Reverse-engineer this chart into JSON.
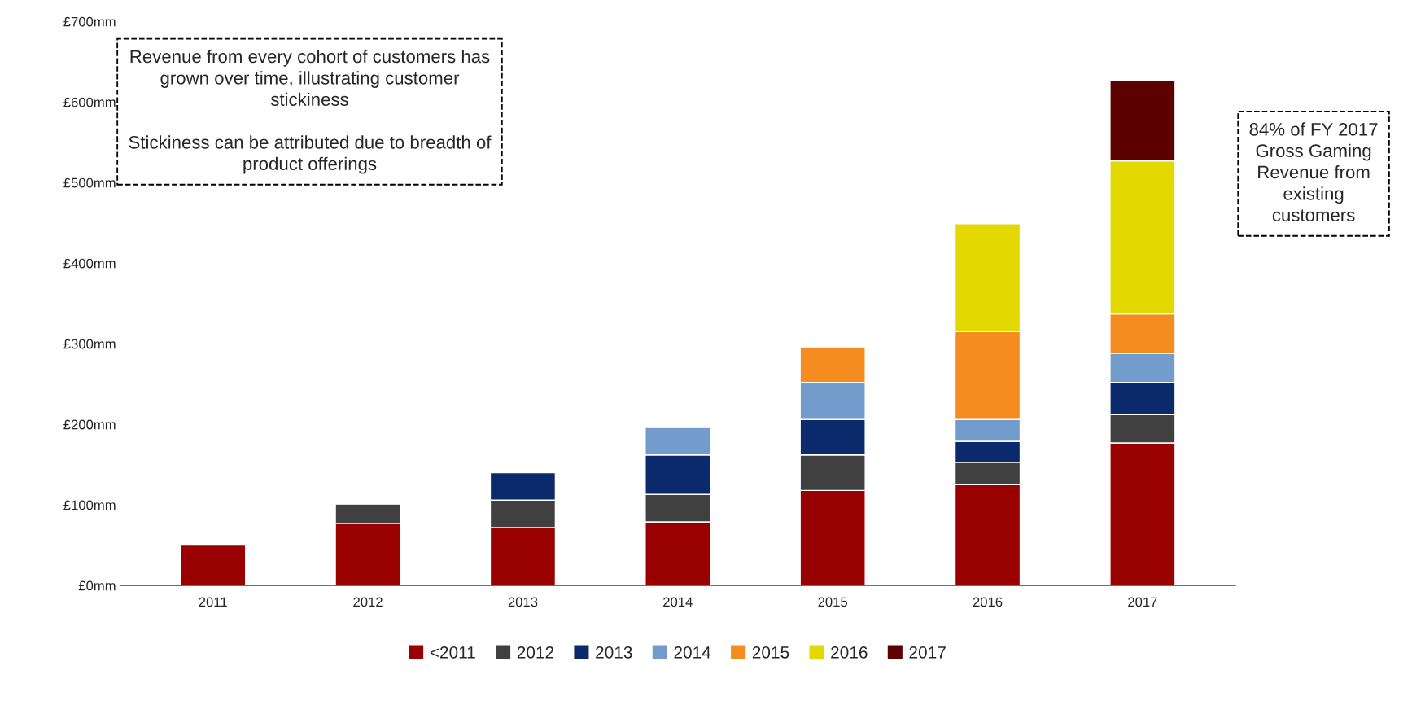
{
  "chart_data": {
    "type": "bar",
    "stacked": true,
    "categories": [
      "2011",
      "2012",
      "2013",
      "2014",
      "2015",
      "2016",
      "2017"
    ],
    "series": [
      {
        "name": "<2011",
        "color": "#990000",
        "values": [
          50,
          77,
          72,
          79,
          118,
          125,
          177
        ]
      },
      {
        "name": "2012",
        "color": "#404040",
        "values": [
          null,
          24,
          34,
          34,
          44,
          28,
          35
        ]
      },
      {
        "name": "2013",
        "color": "#0b2a6b",
        "values": [
          null,
          null,
          34,
          49,
          44,
          26,
          40
        ]
      },
      {
        "name": "2014",
        "color": "#729ccc",
        "values": [
          null,
          null,
          null,
          34,
          46,
          27,
          36
        ]
      },
      {
        "name": "2015",
        "color": "#f48c20",
        "values": [
          null,
          null,
          null,
          null,
          44,
          109,
          49
        ]
      },
      {
        "name": "2016",
        "color": "#e3d900",
        "values": [
          null,
          null,
          null,
          null,
          null,
          134,
          190
        ]
      },
      {
        "name": "2017",
        "color": "#5c0000",
        "values": [
          null,
          null,
          null,
          null,
          null,
          null,
          100
        ]
      }
    ],
    "ylim": [
      0,
      700
    ],
    "yticks": [
      {
        "value": 0,
        "label": "£0mm"
      },
      {
        "value": 100,
        "label": "£100mm"
      },
      {
        "value": 200,
        "label": "£200mm"
      },
      {
        "value": 300,
        "label": "£300mm"
      },
      {
        "value": 400,
        "label": "£400mm"
      },
      {
        "value": 500,
        "label": "£500mm"
      },
      {
        "value": 600,
        "label": "£600mm"
      },
      {
        "value": 700,
        "label": "£700mm"
      }
    ],
    "annotations": [
      "Revenue from every cohort of customers has\ngrown over time, illustrating customer\nstickiness\n\nStickiness can be attributed due to breadth of\nproduct offerings",
      "84% of FY 2017\nGross Gaming\nRevenue from\nexisting\ncustomers"
    ],
    "grid": false,
    "legend": "bottom"
  }
}
